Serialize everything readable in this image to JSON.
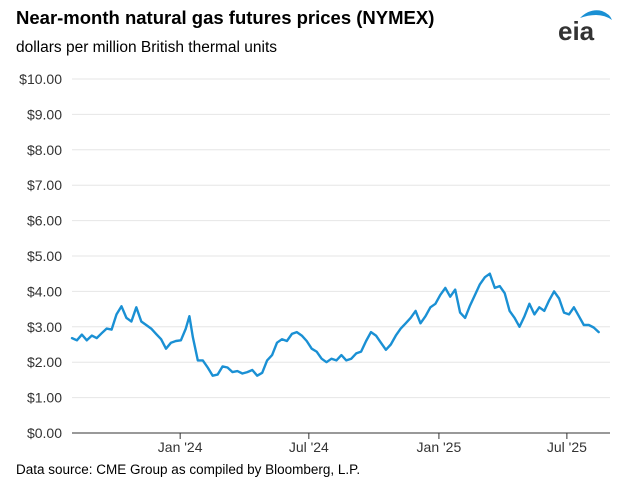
{
  "title": "Near-month natural gas futures prices (NYMEX)",
  "subtitle": "dollars per million British thermal units",
  "source": "Data source: CME Group as compiled by Bloomberg, L.P.",
  "logo": {
    "text": "eia",
    "icon": "eia-logo-icon"
  },
  "colors": {
    "line": "#1a90d4",
    "grid": "#e6e6e6",
    "axis": "#333333"
  },
  "chart_data": {
    "type": "line",
    "title": "Near-month natural gas futures prices (NYMEX)",
    "ylabel": "dollars per million British thermal units",
    "xlabel": "",
    "ylim": [
      0,
      10
    ],
    "xlim": [
      "2023-08-01",
      "2025-08-31"
    ],
    "grid": "horizontal",
    "y_ticks": [
      "$0.00",
      "$1.00",
      "$2.00",
      "$3.00",
      "$4.00",
      "$5.00",
      "$6.00",
      "$7.00",
      "$8.00",
      "$9.00",
      "$10.00"
    ],
    "x_ticks": [
      {
        "date": "2024-01-01",
        "label": "Jan '24"
      },
      {
        "date": "2024-07-01",
        "label": "Jul '24"
      },
      {
        "date": "2025-01-01",
        "label": "Jan '25"
      },
      {
        "date": "2025-07-01",
        "label": "Jul '25"
      }
    ],
    "series": [
      {
        "points": [
          [
            "2023-08-01",
            2.68
          ],
          [
            "2023-08-08",
            2.62
          ],
          [
            "2023-08-15",
            2.78
          ],
          [
            "2023-08-22",
            2.62
          ],
          [
            "2023-08-29",
            2.75
          ],
          [
            "2023-09-05",
            2.68
          ],
          [
            "2023-09-12",
            2.82
          ],
          [
            "2023-09-19",
            2.95
          ],
          [
            "2023-09-26",
            2.92
          ],
          [
            "2023-10-03",
            3.35
          ],
          [
            "2023-10-10",
            3.58
          ],
          [
            "2023-10-17",
            3.25
          ],
          [
            "2023-10-24",
            3.15
          ],
          [
            "2023-10-31",
            3.55
          ],
          [
            "2023-11-07",
            3.15
          ],
          [
            "2023-11-14",
            3.05
          ],
          [
            "2023-11-21",
            2.95
          ],
          [
            "2023-11-28",
            2.8
          ],
          [
            "2023-12-05",
            2.65
          ],
          [
            "2023-12-12",
            2.38
          ],
          [
            "2023-12-19",
            2.55
          ],
          [
            "2023-12-26",
            2.6
          ],
          [
            "2024-01-02",
            2.62
          ],
          [
            "2024-01-09",
            2.95
          ],
          [
            "2024-01-14",
            3.3
          ],
          [
            "2024-01-19",
            2.7
          ],
          [
            "2024-01-26",
            2.05
          ],
          [
            "2024-02-02",
            2.05
          ],
          [
            "2024-02-09",
            1.85
          ],
          [
            "2024-02-16",
            1.62
          ],
          [
            "2024-02-23",
            1.65
          ],
          [
            "2024-03-01",
            1.88
          ],
          [
            "2024-03-08",
            1.85
          ],
          [
            "2024-03-15",
            1.72
          ],
          [
            "2024-03-22",
            1.75
          ],
          [
            "2024-03-29",
            1.68
          ],
          [
            "2024-04-05",
            1.72
          ],
          [
            "2024-04-12",
            1.78
          ],
          [
            "2024-04-19",
            1.62
          ],
          [
            "2024-04-26",
            1.7
          ],
          [
            "2024-05-03",
            2.05
          ],
          [
            "2024-05-10",
            2.2
          ],
          [
            "2024-05-17",
            2.55
          ],
          [
            "2024-05-24",
            2.65
          ],
          [
            "2024-05-31",
            2.6
          ],
          [
            "2024-06-07",
            2.8
          ],
          [
            "2024-06-14",
            2.85
          ],
          [
            "2024-06-21",
            2.75
          ],
          [
            "2024-06-28",
            2.6
          ],
          [
            "2024-07-05",
            2.38
          ],
          [
            "2024-07-12",
            2.3
          ],
          [
            "2024-07-19",
            2.1
          ],
          [
            "2024-07-26",
            2.0
          ],
          [
            "2024-08-02",
            2.1
          ],
          [
            "2024-08-09",
            2.05
          ],
          [
            "2024-08-16",
            2.2
          ],
          [
            "2024-08-23",
            2.05
          ],
          [
            "2024-08-30",
            2.1
          ],
          [
            "2024-09-06",
            2.25
          ],
          [
            "2024-09-13",
            2.3
          ],
          [
            "2024-09-20",
            2.6
          ],
          [
            "2024-09-27",
            2.85
          ],
          [
            "2024-10-04",
            2.75
          ],
          [
            "2024-10-11",
            2.55
          ],
          [
            "2024-10-18",
            2.35
          ],
          [
            "2024-10-25",
            2.5
          ],
          [
            "2024-11-01",
            2.75
          ],
          [
            "2024-11-08",
            2.95
          ],
          [
            "2024-11-15",
            3.1
          ],
          [
            "2024-11-22",
            3.25
          ],
          [
            "2024-11-29",
            3.45
          ],
          [
            "2024-12-06",
            3.1
          ],
          [
            "2024-12-13",
            3.3
          ],
          [
            "2024-12-20",
            3.55
          ],
          [
            "2024-12-27",
            3.65
          ],
          [
            "2025-01-03",
            3.9
          ],
          [
            "2025-01-10",
            4.1
          ],
          [
            "2025-01-17",
            3.85
          ],
          [
            "2025-01-24",
            4.05
          ],
          [
            "2025-01-31",
            3.4
          ],
          [
            "2025-02-07",
            3.25
          ],
          [
            "2025-02-14",
            3.6
          ],
          [
            "2025-02-21",
            3.9
          ],
          [
            "2025-02-28",
            4.2
          ],
          [
            "2025-03-07",
            4.4
          ],
          [
            "2025-03-14",
            4.5
          ],
          [
            "2025-03-21",
            4.1
          ],
          [
            "2025-03-28",
            4.15
          ],
          [
            "2025-04-04",
            3.95
          ],
          [
            "2025-04-11",
            3.45
          ],
          [
            "2025-04-18",
            3.25
          ],
          [
            "2025-04-25",
            3.0
          ],
          [
            "2025-05-02",
            3.3
          ],
          [
            "2025-05-09",
            3.65
          ],
          [
            "2025-05-16",
            3.35
          ],
          [
            "2025-05-23",
            3.55
          ],
          [
            "2025-05-30",
            3.45
          ],
          [
            "2025-06-06",
            3.75
          ],
          [
            "2025-06-13",
            4.0
          ],
          [
            "2025-06-20",
            3.8
          ],
          [
            "2025-06-27",
            3.4
          ],
          [
            "2025-07-04",
            3.35
          ],
          [
            "2025-07-11",
            3.55
          ],
          [
            "2025-07-18",
            3.3
          ],
          [
            "2025-07-25",
            3.05
          ],
          [
            "2025-08-01",
            3.05
          ],
          [
            "2025-08-08",
            2.98
          ],
          [
            "2025-08-15",
            2.85
          ]
        ]
      }
    ]
  }
}
